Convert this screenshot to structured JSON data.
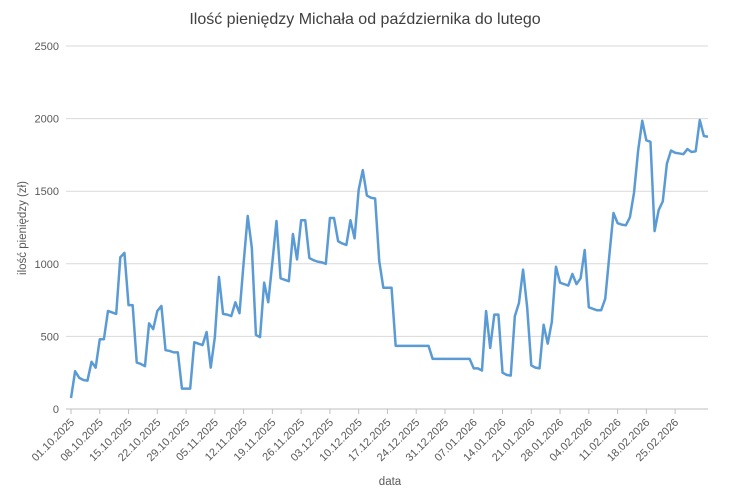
{
  "chart_data": {
    "type": "line",
    "title": "Ilość pieniędzy Michała od października do lutego",
    "x_label": "data",
    "y_label": "ilość pieniędzy (zł)",
    "categories": [
      "01.10.2025",
      null,
      null,
      null,
      null,
      null,
      null,
      "08.10.2025",
      null,
      null,
      null,
      null,
      null,
      null,
      "15.10.2025",
      null,
      null,
      null,
      null,
      null,
      null,
      "22.10.2025",
      null,
      null,
      null,
      null,
      null,
      null,
      "29.10.2025",
      null,
      null,
      null,
      null,
      null,
      null,
      "05.11.2025",
      null,
      null,
      null,
      null,
      null,
      null,
      "12.11.2025",
      null,
      null,
      null,
      null,
      null,
      null,
      "19.11.2025",
      null,
      null,
      null,
      null,
      null,
      null,
      "26.11.2025",
      null,
      null,
      null,
      null,
      null,
      null,
      "03.12.2025",
      null,
      null,
      null,
      null,
      null,
      null,
      "10.12.2025",
      null,
      null,
      null,
      null,
      null,
      null,
      "17.12.2025",
      null,
      null,
      null,
      null,
      null,
      null,
      "24.12.2025",
      null,
      null,
      null,
      null,
      null,
      null,
      "31.12.2025",
      null,
      null,
      null,
      null,
      null,
      null,
      "07.01.2026",
      null,
      null,
      null,
      null,
      null,
      null,
      "14.01.2026",
      null,
      null,
      null,
      null,
      null,
      null,
      "21.01.2026",
      null,
      null,
      null,
      null,
      null,
      null,
      "28.01.2026",
      null,
      null,
      null,
      null,
      null,
      null,
      "04.02.2026",
      null,
      null,
      null,
      null,
      null,
      null,
      "11.02.2026",
      null,
      null,
      null,
      null,
      null,
      null,
      "18.02.2026",
      null,
      null,
      null,
      null,
      null,
      null,
      "25.02.2026",
      null,
      null,
      null,
      null,
      null,
      null,
      null,
      null
    ],
    "values": [
      75,
      260,
      215,
      200,
      195,
      325,
      285,
      480,
      480,
      675,
      665,
      655,
      1045,
      1075,
      715,
      715,
      320,
      310,
      295,
      590,
      550,
      675,
      710,
      405,
      400,
      390,
      390,
      140,
      140,
      140,
      460,
      450,
      440,
      530,
      285,
      495,
      910,
      655,
      650,
      640,
      735,
      660,
      1005,
      1330,
      1110,
      510,
      495,
      870,
      735,
      1010,
      1295,
      900,
      890,
      880,
      1205,
      1030,
      1300,
      1300,
      1040,
      1025,
      1015,
      1010,
      1000,
      1315,
      1315,
      1155,
      1140,
      1130,
      1300,
      1175,
      1510,
      1645,
      1470,
      1455,
      1450,
      1020,
      835,
      835,
      835,
      435,
      435,
      435,
      435,
      435,
      435,
      435,
      435,
      435,
      345,
      345,
      345,
      345,
      345,
      345,
      345,
      345,
      345,
      345,
      280,
      280,
      265,
      675,
      420,
      650,
      650,
      250,
      235,
      230,
      640,
      730,
      960,
      700,
      300,
      285,
      280,
      580,
      450,
      600,
      980,
      870,
      860,
      850,
      930,
      860,
      900,
      1095,
      700,
      690,
      680,
      680,
      760,
      1060,
      1350,
      1280,
      1270,
      1265,
      1320,
      1490,
      1780,
      1985,
      1850,
      1840,
      1225,
      1370,
      1430,
      1690,
      1780,
      1765,
      1760,
      1755,
      1790,
      1770,
      1775,
      1990,
      1880,
      1875
    ],
    "color": "#5b9bd5",
    "ylim": [
      0,
      2500
    ],
    "yticks": [
      0,
      500,
      1000,
      1500,
      2000,
      2500
    ],
    "grid": true
  }
}
